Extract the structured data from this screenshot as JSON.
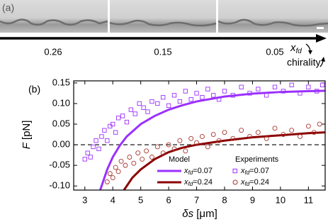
{
  "panel_a": {
    "label": "(a)",
    "values": [
      0.26,
      0.15,
      0.05
    ],
    "axis_var": "x",
    "axis_sub": "fd",
    "direction_label": "chirality"
  },
  "chart_data": {
    "type": "scatter",
    "panel_label": "(b)",
    "y_label_var": "F",
    "y_label_unit": " [pN]",
    "x_label_var": "δs",
    "x_label_unit": " [μm]",
    "xlim": [
      2.6,
      11.6
    ],
    "ylim": [
      -0.11,
      0.155
    ],
    "xticks": [
      3,
      4,
      5,
      6,
      7,
      8,
      9,
      10,
      11
    ],
    "yticks": [
      {
        "value": -0.1,
        "label": "-0.10"
      },
      {
        "value": -0.05,
        "label": "-0.05"
      },
      {
        "value": 0,
        "label": "0.00"
      },
      {
        "value": 0.05,
        "label": "0.05"
      },
      {
        "value": 0.1,
        "label": "0.10"
      },
      {
        "value": 0.15,
        "label": "0.15"
      }
    ],
    "reference_line": 0,
    "legend_headers": [
      "Model",
      "Experiments"
    ],
    "series": [
      {
        "group": 0,
        "kind": "line",
        "name": "x",
        "name_sub": "fd",
        "name_suffix": "=0.07",
        "color": "#9b30ff",
        "x": [
          3.55,
          3.8,
          4.0,
          4.25,
          4.5,
          5.0,
          5.5,
          6.0,
          6.5,
          7.0,
          8.0,
          9.0,
          10.0,
          11.0,
          11.6
        ],
        "values": [
          -0.11,
          -0.06,
          -0.03,
          -0.002,
          0.02,
          0.05,
          0.07,
          0.085,
          0.096,
          0.105,
          0.117,
          0.124,
          0.128,
          0.13,
          0.131
        ]
      },
      {
        "group": 0,
        "kind": "line",
        "name": "x",
        "name_sub": "fd",
        "name_suffix": "=0.24",
        "color": "#8b0000",
        "x": [
          4.4,
          4.7,
          5.0,
          5.5,
          6.0,
          6.5,
          7.0,
          8.0,
          9.0,
          10.0,
          11.0,
          11.6
        ],
        "values": [
          -0.11,
          -0.08,
          -0.06,
          -0.035,
          -0.018,
          -0.007,
          0.0,
          0.01,
          0.018,
          0.023,
          0.028,
          0.03
        ]
      },
      {
        "group": 1,
        "kind": "square",
        "name": "x",
        "name_sub": "fd",
        "name_suffix": "=0.07",
        "color": "#9b30ff",
        "x": [
          3.0,
          3.1,
          3.2,
          3.3,
          3.4,
          3.5,
          3.6,
          3.7,
          3.8,
          3.9,
          4.0,
          4.1,
          4.2,
          4.35,
          4.5,
          4.65,
          4.8,
          4.95,
          5.1,
          5.25,
          5.4,
          5.6,
          5.8,
          6.0,
          6.2,
          6.4,
          6.6,
          6.8,
          7.0,
          7.2,
          7.4,
          7.6,
          7.8,
          8.0,
          8.3,
          8.6,
          8.9,
          9.2,
          9.5,
          9.8,
          10.1,
          10.4,
          10.7,
          11.0,
          11.3,
          11.5
        ],
        "values": [
          -0.035,
          -0.02,
          -0.03,
          -0.005,
          0.01,
          -0.01,
          0.02,
          0.035,
          0.01,
          0.045,
          0.05,
          0.03,
          0.065,
          0.07,
          0.055,
          0.085,
          0.075,
          0.1,
          0.09,
          0.08,
          0.105,
          0.1,
          0.115,
          0.095,
          0.12,
          0.105,
          0.13,
          0.11,
          0.125,
          0.115,
          0.135,
          0.12,
          0.11,
          0.13,
          0.12,
          0.14,
          0.125,
          0.135,
          0.12,
          0.14,
          0.13,
          0.145,
          0.125,
          0.14,
          0.13,
          0.145
        ]
      },
      {
        "group": 1,
        "kind": "circle",
        "name": "x",
        "name_sub": "fd",
        "name_suffix": "=0.24",
        "color": "#a8352c",
        "x": [
          3.8,
          3.9,
          4.0,
          4.1,
          4.2,
          4.3,
          4.45,
          4.6,
          4.75,
          4.9,
          5.05,
          5.2,
          5.4,
          5.6,
          5.8,
          6.0,
          6.2,
          6.4,
          6.6,
          6.8,
          7.0,
          7.2,
          7.4,
          7.6,
          7.8,
          8.0,
          8.3,
          8.6,
          8.9,
          9.2,
          9.5,
          9.8,
          10.1,
          10.4,
          10.7,
          11.0,
          11.2,
          11.4
        ],
        "values": [
          -0.09,
          -0.07,
          -0.08,
          -0.055,
          -0.065,
          -0.04,
          -0.05,
          -0.03,
          -0.045,
          -0.02,
          -0.035,
          -0.015,
          -0.03,
          -0.005,
          -0.02,
          0.0,
          -0.01,
          0.01,
          -0.015,
          0.015,
          0.005,
          0.02,
          -0.005,
          0.025,
          0.01,
          0.03,
          0.015,
          0.035,
          0.02,
          0.03,
          0.015,
          0.04,
          0.025,
          0.035,
          0.02,
          0.045,
          0.03,
          0.05
        ]
      }
    ]
  }
}
